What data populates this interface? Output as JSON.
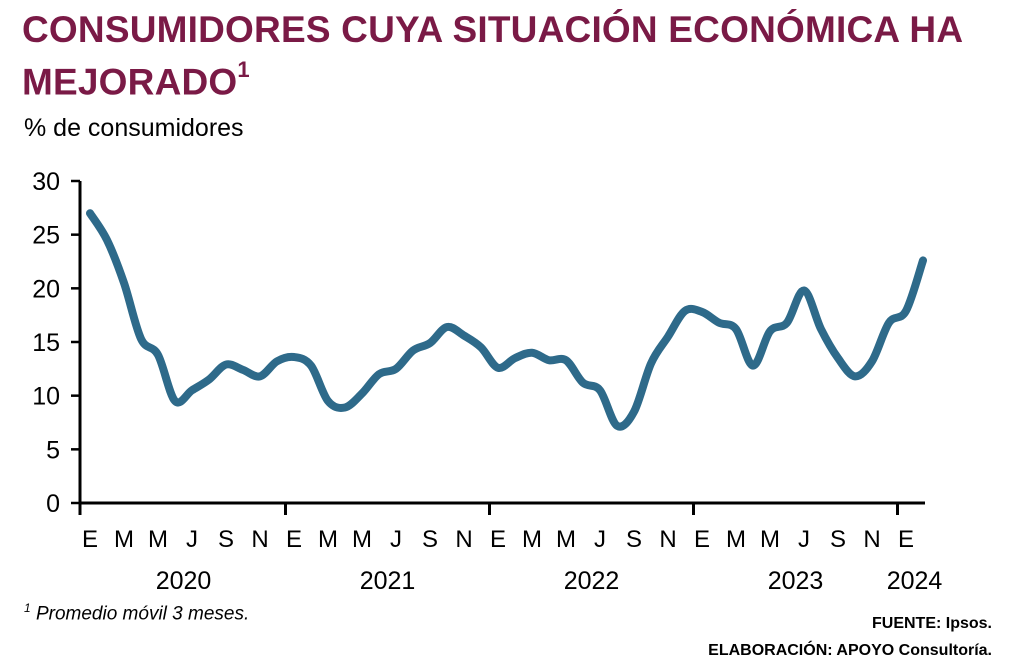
{
  "title_main": "CONSUMIDORES CUYA SITUACIÓN ECONÓMICA HA MEJORADO",
  "title_sup": "1",
  "subtitle": "% de consumidores",
  "footnote_sup": "1",
  "footnote_text": " Promedio móvil 3 meses.",
  "source_line": "FUENTE: Ipsos.",
  "credit_line": "ELABORACIÓN: APOYO Consultoría.",
  "colors": {
    "title": "#7a1a46",
    "series": "#2e6a8a"
  },
  "chart_data": {
    "type": "line",
    "ylim": [
      0,
      30
    ],
    "yticks": [
      0,
      5,
      10,
      15,
      20,
      25,
      30
    ],
    "month_labels": [
      "E",
      "M",
      "M",
      "J",
      "S",
      "N",
      "E",
      "M",
      "M",
      "J",
      "S",
      "N",
      "E",
      "M",
      "M",
      "J",
      "S",
      "N",
      "E",
      "M",
      "M",
      "J",
      "S",
      "N",
      "E"
    ],
    "year_labels": [
      "2020",
      "2021",
      "2022",
      "2023",
      "2024"
    ],
    "x": [
      "2020-01",
      "2020-02",
      "2020-03",
      "2020-04",
      "2020-05",
      "2020-06",
      "2020-07",
      "2020-08",
      "2020-09",
      "2020-10",
      "2020-11",
      "2020-12",
      "2021-01",
      "2021-02",
      "2021-03",
      "2021-04",
      "2021-05",
      "2021-06",
      "2021-07",
      "2021-08",
      "2021-09",
      "2021-10",
      "2021-11",
      "2021-12",
      "2022-01",
      "2022-02",
      "2022-03",
      "2022-04",
      "2022-05",
      "2022-06",
      "2022-07",
      "2022-08",
      "2022-09",
      "2022-10",
      "2022-11",
      "2022-12",
      "2023-01",
      "2023-02",
      "2023-03",
      "2023-04",
      "2023-05",
      "2023-06",
      "2023-07",
      "2023-08",
      "2023-09",
      "2023-10",
      "2023-11",
      "2023-12",
      "2024-01",
      "2024-02"
    ],
    "series": [
      {
        "values": [
          27.0,
          24.5,
          20.5,
          15.3,
          13.8,
          9.5,
          10.5,
          11.5,
          12.9,
          12.4,
          11.8,
          13.2,
          13.6,
          12.8,
          9.5,
          8.9,
          10.2,
          12.0,
          12.5,
          14.2,
          14.9,
          16.4,
          15.6,
          14.5,
          12.6,
          13.5,
          14.0,
          13.3,
          13.3,
          11.2,
          10.5,
          7.2,
          8.5,
          13.0,
          15.5,
          17.9,
          17.8,
          16.8,
          16.2,
          12.8,
          16.0,
          16.8,
          19.8,
          16.2,
          13.5,
          11.8,
          13.2,
          16.8,
          17.9,
          22.6
        ]
      }
    ]
  }
}
